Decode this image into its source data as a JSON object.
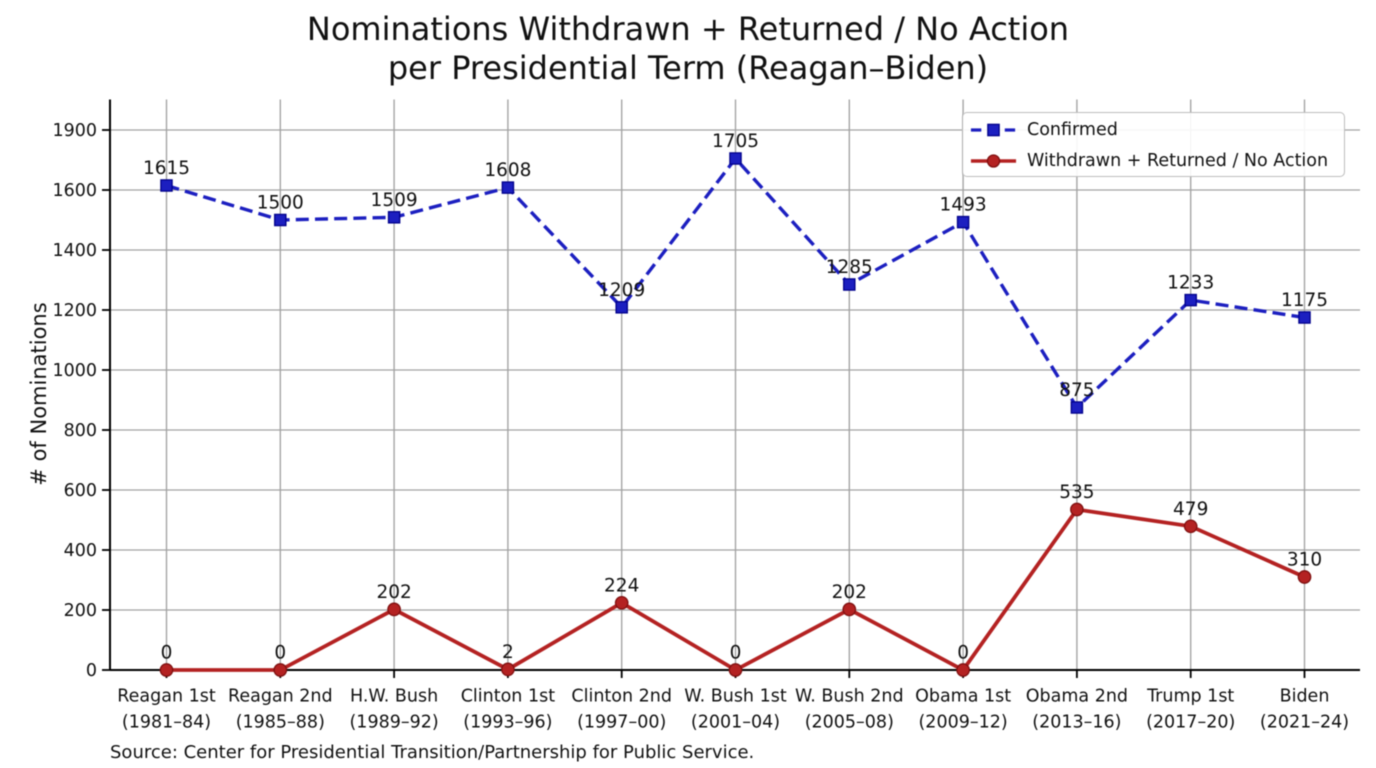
{
  "title": {
    "line1": "Nominations Withdrawn + Returned / No Action",
    "line2": "per Presidential Term (Reagan–Biden)"
  },
  "source_note": "Source: Center for Presidential Transition/Partnership for Public Service.",
  "legend": {
    "entries": [
      {
        "label": "Confirmed",
        "style": "dashed-square"
      },
      {
        "label": "Withdrawn + Returned / No Action",
        "style": "solid-circle"
      }
    ],
    "position": "upper right"
  },
  "colors": {
    "confirmed": "#1c1fc0",
    "confirmed_edge": "#00008b",
    "withdrawn": "#b42222",
    "withdrawn_edge": "#7f1010",
    "grid": "#a2a2a2",
    "axis": "#000000",
    "text": "#111111",
    "legend_border": "#bcbcbc",
    "background": "#ffffff"
  },
  "chart_data": {
    "type": "line",
    "title": "Nominations Withdrawn + Returned / No Action per Presidential Term (Reagan–Biden)",
    "xlabel": "",
    "ylabel": "# of Nominations",
    "categories": [
      {
        "line1": "Reagan 1st",
        "line2": "(1981–84)"
      },
      {
        "line1": "Reagan 2nd",
        "line2": "(1985–88)"
      },
      {
        "line1": "H.W. Bush",
        "line2": "(1989–92)"
      },
      {
        "line1": "Clinton 1st",
        "line2": "(1993–96)"
      },
      {
        "line1": "Clinton 2nd",
        "line2": "(1997–00)"
      },
      {
        "line1": "W. Bush 1st",
        "line2": "(2001–04)"
      },
      {
        "line1": "W. Bush 2nd",
        "line2": "(2005–08)"
      },
      {
        "line1": "Obama 1st",
        "line2": "(2009–12)"
      },
      {
        "line1": "Obama 2nd",
        "line2": "(2013–16)"
      },
      {
        "line1": "Trump 1st",
        "line2": "(2017–20)"
      },
      {
        "line1": "Biden",
        "line2": "(2021–24)"
      }
    ],
    "series": [
      {
        "name": "Confirmed",
        "values": [
          1615,
          1500,
          1509,
          1608,
          1209,
          1705,
          1285,
          1493,
          875,
          1233,
          1175
        ],
        "line": "dashed",
        "marker": "square"
      },
      {
        "name": "Withdrawn + Returned / No Action",
        "values": [
          0,
          0,
          202,
          2,
          224,
          0,
          202,
          0,
          535,
          479,
          310
        ],
        "line": "solid",
        "marker": "circle"
      }
    ],
    "yticks": [
      "0",
      "200",
      "400",
      "600",
      "800",
      "1000",
      "1200",
      "1400",
      "1600",
      "1900"
    ],
    "ylim": [
      0,
      1900
    ],
    "grid": true,
    "legend_position": "upper right"
  }
}
